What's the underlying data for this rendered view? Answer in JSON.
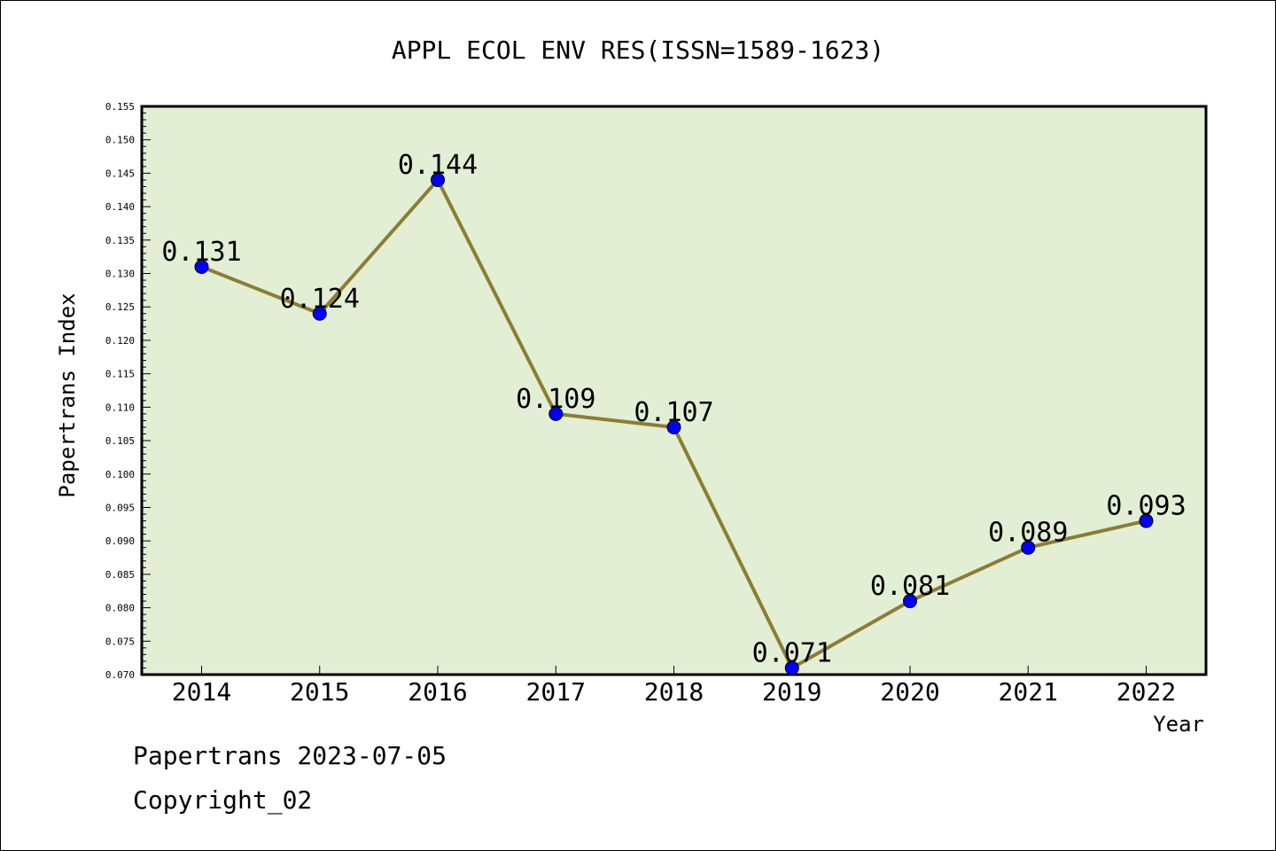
{
  "chart_data": {
    "type": "line",
    "title": "APPL ECOL ENV RES(ISSN=1589-1623)",
    "xlabel": "Year",
    "ylabel": "Papertrans Index",
    "categories": [
      "2014",
      "2015",
      "2016",
      "2017",
      "2018",
      "2019",
      "2020",
      "2021",
      "2022"
    ],
    "values": [
      0.131,
      0.124,
      0.144,
      0.109,
      0.107,
      0.071,
      0.081,
      0.089,
      0.093
    ],
    "data_labels": [
      "0.131",
      "0.124",
      "0.144",
      "0.109",
      "0.107",
      "0.071",
      "0.081",
      "0.089",
      "0.093"
    ],
    "ylim": [
      0.07,
      0.155
    ],
    "yticks": [
      "0.070",
      "0.075",
      "0.080",
      "0.085",
      "0.090",
      "0.095",
      "0.100",
      "0.105",
      "0.110",
      "0.115",
      "0.120",
      "0.125",
      "0.130",
      "0.135",
      "0.140",
      "0.145",
      "0.150",
      "0.155"
    ],
    "grid": false,
    "legend": "none",
    "colors": {
      "plot_background": "#e2efd5",
      "line": "#8c7d33",
      "marker": "#0000ff"
    }
  },
  "footer": {
    "line1": "Papertrans 2023-07-05",
    "line2": "Copyright_02"
  }
}
